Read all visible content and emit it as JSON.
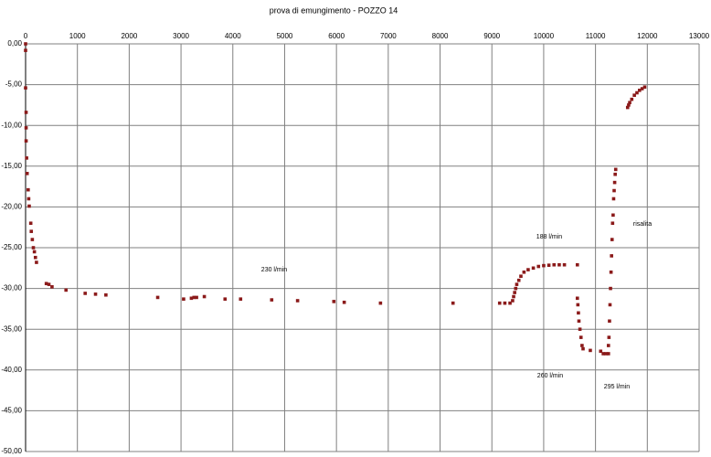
{
  "chart_data": {
    "type": "scatter",
    "title": "prova di emungimento - POZZO 14",
    "color": "#8b1a1a",
    "grid": true,
    "xlim": [
      0,
      13000
    ],
    "xticks": [
      0,
      1000,
      2000,
      3000,
      4000,
      5000,
      6000,
      7000,
      8000,
      9000,
      10000,
      11000,
      12000,
      13000
    ],
    "ylim": [
      -50,
      0
    ],
    "yticks": [
      {
        "value": 0,
        "label": "0,00"
      },
      {
        "value": -5,
        "label": "-5,00"
      },
      {
        "value": -10,
        "label": "-10,00"
      },
      {
        "value": -15,
        "label": "-15,00"
      },
      {
        "value": -20,
        "label": "-20,00"
      },
      {
        "value": -25,
        "label": "-25,00"
      },
      {
        "value": -30,
        "label": "-30,00"
      },
      {
        "value": -35,
        "label": "-35,00"
      },
      {
        "value": -40,
        "label": "-40,00"
      },
      {
        "value": -45,
        "label": "-45,00"
      },
      {
        "value": -50,
        "label": "-50,00"
      }
    ],
    "annotations": [
      "230 l/min",
      "188 l/min",
      "260 l/min",
      "295 l/min",
      "risalita"
    ],
    "x": [
      0,
      0,
      0,
      10,
      10,
      10,
      20,
      30,
      50,
      60,
      70,
      100,
      110,
      130,
      150,
      170,
      190,
      210,
      400,
      450,
      510,
      780,
      1150,
      1350,
      1550,
      2550,
      3050,
      3200,
      3250,
      3300,
      3450,
      3850,
      4150,
      4750,
      5250,
      5950,
      6150,
      6850,
      8250,
      9150,
      9250,
      9350,
      9400,
      9420,
      9440,
      9460,
      9480,
      9520,
      9560,
      9620,
      9700,
      9800,
      9900,
      10000,
      10100,
      10200,
      10300,
      10400,
      10650,
      10650,
      10660,
      10670,
      10680,
      10700,
      10720,
      10740,
      10760,
      10900,
      11100,
      11150,
      11200,
      11250,
      11250,
      11260,
      11270,
      11280,
      11290,
      11300,
      11310,
      11320,
      11330,
      11340,
      11350,
      11360,
      11370,
      11380,
      11390,
      11620,
      11640,
      11660,
      11700,
      11750,
      11800,
      11850,
      11900,
      11950
    ],
    "y": [
      0,
      -0.8,
      -5.4,
      -8.4,
      -10.3,
      -11.9,
      -14,
      -15.9,
      -17.9,
      -19,
      -19.9,
      -22,
      -23,
      -24,
      -25,
      -25.5,
      -26.2,
      -26.8,
      -29.4,
      -29.5,
      -29.8,
      -30.2,
      -30.6,
      -30.7,
      -30.8,
      -31.1,
      -31.3,
      -31.2,
      -31.1,
      -31.1,
      -31,
      -31.3,
      -31.3,
      -31.4,
      -31.5,
      -31.6,
      -31.7,
      -31.8,
      -31.8,
      -31.8,
      -31.8,
      -31.8,
      -31.5,
      -31,
      -30.5,
      -30,
      -29.5,
      -29,
      -28.5,
      -28,
      -27.7,
      -27.5,
      -27.3,
      -27.2,
      -27.15,
      -27.1,
      -27.1,
      -27.1,
      -27.1,
      -31.2,
      -32,
      -33,
      -34,
      -35,
      -36,
      -37,
      -37.4,
      -37.6,
      -37.7,
      -38,
      -38,
      -38,
      -37,
      -36,
      -34,
      -32,
      -30,
      -28,
      -26,
      -24,
      -22,
      -21,
      -19,
      -18,
      -17,
      -16,
      -15.4,
      -7.8,
      -7.5,
      -7.2,
      -6.8,
      -6.3,
      -6,
      -5.7,
      -5.5,
      -5.3
    ]
  }
}
